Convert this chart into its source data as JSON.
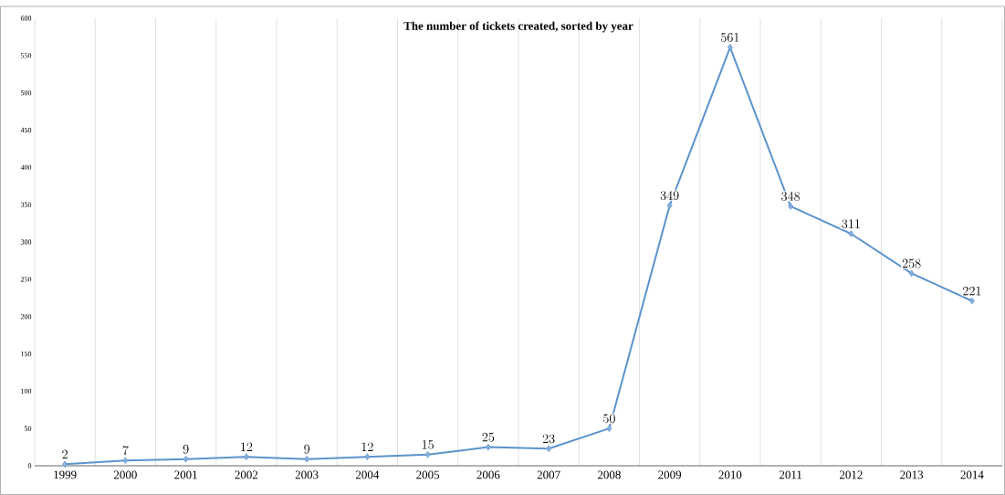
{
  "chart_data": {
    "type": "line",
    "title": "The number of tickets created, sorted by year",
    "categories": [
      "1999",
      "2000",
      "2001",
      "2002",
      "2003",
      "2004",
      "2005",
      "2006",
      "2007",
      "2008",
      "2009",
      "2010",
      "2011",
      "2012",
      "2013",
      "2014"
    ],
    "series": [
      {
        "color": "#5b93cc",
        "values": [
          2,
          7,
          9,
          12,
          9,
          12,
          15,
          25,
          23,
          50,
          349,
          561,
          348,
          311,
          258,
          221
        ]
      }
    ],
    "ylim": [
      0,
      600
    ],
    "yticks": [
      0,
      50,
      100,
      150,
      200,
      250,
      300,
      350,
      400,
      450,
      500,
      550,
      600
    ],
    "grid": "x",
    "marker": "diamond",
    "line_style": "solid",
    "data_labels": true
  }
}
